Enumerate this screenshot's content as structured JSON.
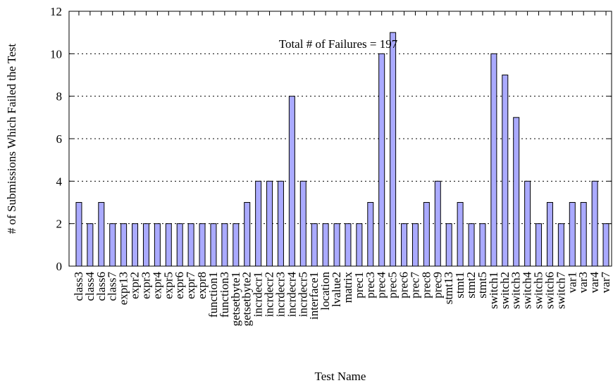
{
  "chart_data": {
    "type": "bar",
    "y_label": "# of Submissions Which Failed the Test",
    "x_label": "Test Name",
    "annotation": "Total # of Failures = 197",
    "categories": [
      "class3",
      "class4",
      "class6",
      "class7",
      "expr13",
      "expr2",
      "expr3",
      "expr4",
      "expr5",
      "expr6",
      "expr7",
      "expr8",
      "function1",
      "function3",
      "getsetbyte1",
      "getsetbyte2",
      "incrdecr1",
      "incrdecr2",
      "incrdecr3",
      "incrdecr4",
      "incrdecr5",
      "interface1",
      "location",
      "lvalue2",
      "matrix",
      "prec1",
      "prec3",
      "prec4",
      "prec5",
      "prec6",
      "prec7",
      "prec8",
      "prec9",
      "stmt13",
      "stmt1",
      "stmt2",
      "stmt5",
      "switch1",
      "switch2",
      "switch3",
      "switch4",
      "switch5",
      "switch6",
      "switch7",
      "var1",
      "var3",
      "var4",
      "var7"
    ],
    "values": [
      3,
      2,
      3,
      2,
      2,
      2,
      2,
      2,
      2,
      2,
      2,
      2,
      2,
      2,
      2,
      3,
      4,
      4,
      4,
      8,
      4,
      2,
      2,
      2,
      2,
      2,
      3,
      10,
      11,
      2,
      2,
      3,
      4,
      2,
      3,
      2,
      2,
      10,
      9,
      7,
      4,
      2,
      3,
      2,
      3,
      3,
      4,
      2
    ],
    "color": "#aaaaff",
    "ylim": [
      0,
      12
    ],
    "yticks": [
      0,
      2,
      4,
      6,
      8,
      10,
      12
    ],
    "grid": true
  }
}
